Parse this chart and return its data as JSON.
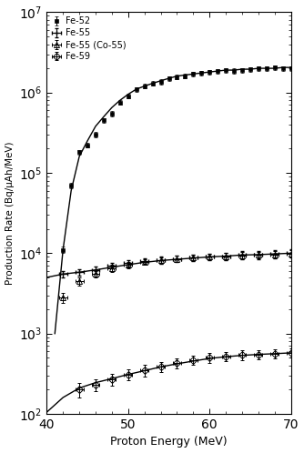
{
  "xlabel": "Proton Energy (MeV)",
  "ylabel": "Production Rate (Bq/μAh/MeV)",
  "xlim": [
    40,
    70
  ],
  "ylim_log": [
    100.0,
    10000000.0
  ],
  "fe52_data": {
    "x": [
      42,
      43,
      44,
      45,
      46,
      47,
      48,
      49,
      50,
      51,
      52,
      53,
      54,
      55,
      56,
      57,
      58,
      59,
      60,
      61,
      62,
      63,
      64,
      65,
      66,
      67,
      68,
      69,
      70
    ],
    "y": [
      11000.0,
      70000.0,
      180000.0,
      220000.0,
      300000.0,
      450000.0,
      550000.0,
      750000.0,
      900000.0,
      1100000.0,
      1200000.0,
      1300000.0,
      1350000.0,
      1500000.0,
      1550000.0,
      1600000.0,
      1700000.0,
      1750000.0,
      1800000.0,
      1850000.0,
      1900000.0,
      1850000.0,
      1900000.0,
      1950000.0,
      2000000.0,
      2000000.0,
      2050000.0,
      2000000.0,
      2000000.0
    ],
    "yerr": [
      1000.0,
      5000.0,
      10000.0,
      15000.0,
      20000.0,
      30000.0,
      40000.0,
      50000.0,
      60000.0,
      70000.0,
      80000.0,
      90000.0,
      100000.0,
      100000.0,
      100000.0,
      100000.0,
      120000.0,
      120000.0,
      120000.0,
      120000.0,
      130000.0,
      130000.0,
      130000.0,
      130000.0,
      140000.0,
      140000.0,
      140000.0,
      130000.0,
      140000.0
    ]
  },
  "fe52_curve": {
    "x": [
      41,
      42,
      43,
      44,
      45,
      46,
      47,
      48,
      49,
      50,
      51,
      52,
      53,
      54,
      55,
      56,
      57,
      58,
      59,
      60,
      61,
      62,
      63,
      64,
      65,
      66,
      67,
      68,
      69,
      70
    ],
    "y": [
      1000.0,
      11000.0,
      60000.0,
      160000.0,
      250000.0,
      380000.0,
      500000.0,
      650000.0,
      800000.0,
      950000.0,
      1100000.0,
      1200000.0,
      1300000.0,
      1400000.0,
      1500000.0,
      1600000.0,
      1650000.0,
      1700000.0,
      1750000.0,
      1800000.0,
      1850000.0,
      1900000.0,
      1900000.0,
      1950000.0,
      1950000.0,
      2000000.0,
      2000000.0,
      2000000.0,
      2050000.0,
      2050000.0
    ]
  },
  "fe55_data": {
    "x": [
      42,
      44,
      46,
      48,
      50,
      52,
      54,
      56,
      58,
      60,
      62,
      64,
      66,
      68,
      70
    ],
    "y": [
      5500,
      5800,
      6200,
      7000,
      7500,
      8000,
      8200,
      8500,
      8800,
      9000,
      9200,
      9500,
      9500,
      9800,
      10000
    ],
    "yerr": [
      500,
      500,
      600,
      600,
      700,
      700,
      800,
      800,
      900,
      900,
      1000,
      1000,
      1000,
      1100,
      1100
    ],
    "xerr": [
      0.5,
      0.5,
      0.5,
      0.5,
      0.5,
      0.5,
      0.5,
      0.5,
      0.5,
      0.5,
      0.5,
      0.5,
      0.5,
      0.5,
      0.5
    ]
  },
  "fe55_curve": {
    "x": [
      40,
      42,
      44,
      46,
      48,
      50,
      52,
      54,
      56,
      58,
      60,
      62,
      64,
      66,
      68,
      70
    ],
    "y": [
      5000,
      5500,
      5800,
      6200,
      6700,
      7200,
      7700,
      8100,
      8400,
      8700,
      9000,
      9200,
      9500,
      9600,
      9800,
      10000
    ]
  },
  "co55_data": {
    "x": [
      42,
      44,
      46,
      48,
      50,
      52,
      54,
      56,
      58,
      60,
      62,
      64,
      66,
      68,
      70
    ],
    "y": [
      2800,
      4500,
      5500,
      6500,
      7200,
      7800,
      8200,
      8500,
      8800,
      9000,
      9200,
      9400,
      9500,
      9700,
      9900
    ],
    "yerr": [
      400,
      500,
      550,
      600,
      650,
      700,
      750,
      800,
      850,
      880,
      900,
      920,
      950,
      970,
      990
    ],
    "xerr": [
      0.5,
      0.5,
      0.5,
      0.5,
      0.5,
      0.5,
      0.5,
      0.5,
      0.5,
      0.5,
      0.5,
      0.5,
      0.5,
      0.5,
      0.5
    ]
  },
  "fe59_data": {
    "x": [
      44,
      46,
      48,
      50,
      52,
      54,
      56,
      58,
      60,
      62,
      64,
      66,
      68,
      70
    ],
    "y": [
      200,
      230,
      270,
      310,
      350,
      390,
      430,
      470,
      500,
      520,
      540,
      550,
      560,
      580
    ],
    "yerr": [
      40,
      40,
      45,
      50,
      55,
      55,
      60,
      65,
      70,
      70,
      75,
      75,
      75,
      80
    ],
    "xerr": [
      0.5,
      0.5,
      0.5,
      0.5,
      0.5,
      0.5,
      0.5,
      0.5,
      0.5,
      0.5,
      0.5,
      0.5,
      0.5,
      0.5
    ]
  },
  "fe59_curve": {
    "x": [
      40,
      42,
      44,
      46,
      48,
      50,
      52,
      54,
      56,
      58,
      60,
      62,
      64,
      66,
      68,
      70
    ],
    "y": [
      105,
      160,
      210,
      245,
      275,
      310,
      345,
      385,
      420,
      455,
      490,
      515,
      535,
      550,
      562,
      575
    ]
  },
  "marker_color": "black",
  "line_color": "black",
  "bg_color": "white",
  "fig_width": 3.34,
  "fig_height": 4.98
}
